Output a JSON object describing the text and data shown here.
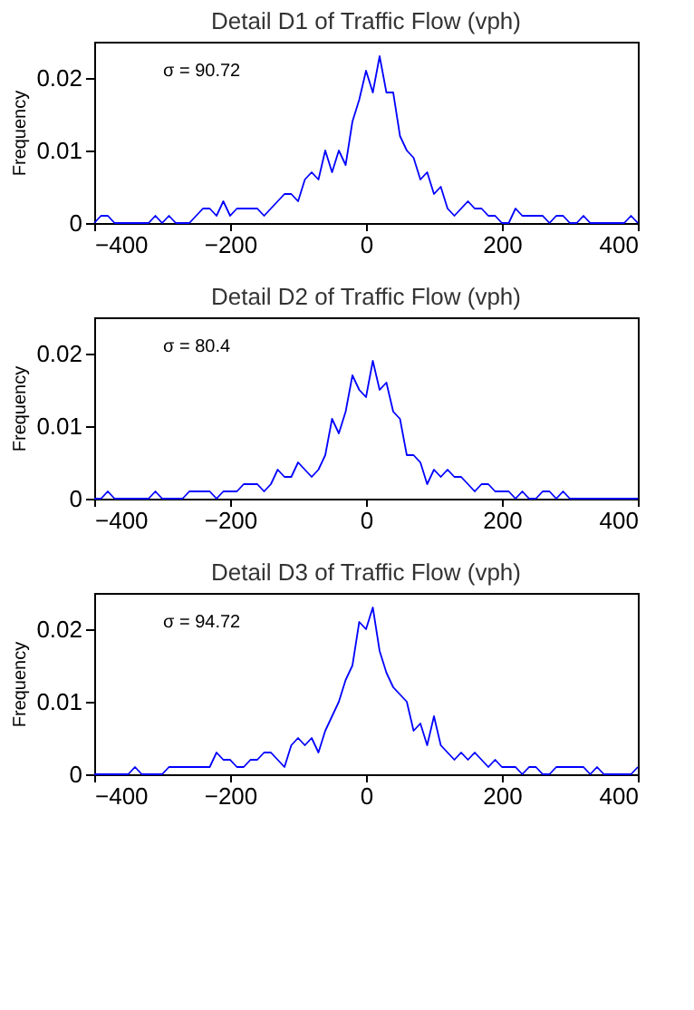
{
  "chart_data": [
    {
      "type": "line",
      "title": "Detail D1 of Traffic Flow (vph)",
      "ylabel": "Frequency",
      "annotations": [
        "σ = 90.72"
      ],
      "xlim": [
        -400,
        400
      ],
      "xticks": [
        -400,
        -200,
        0,
        200,
        400
      ],
      "ylim": [
        0,
        0.025
      ],
      "yticks": [
        0,
        0.01,
        0.02
      ],
      "grid": false,
      "line_style": "solid",
      "x": [
        -400,
        -390,
        -380,
        -370,
        -360,
        -350,
        -340,
        -330,
        -320,
        -310,
        -300,
        -290,
        -280,
        -270,
        -260,
        -250,
        -240,
        -230,
        -220,
        -210,
        -200,
        -190,
        -180,
        -170,
        -160,
        -150,
        -140,
        -130,
        -120,
        -110,
        -100,
        -90,
        -80,
        -70,
        -60,
        -50,
        -40,
        -30,
        -20,
        -10,
        0,
        10,
        20,
        30,
        40,
        50,
        60,
        70,
        80,
        90,
        100,
        110,
        120,
        130,
        140,
        150,
        160,
        170,
        180,
        190,
        200,
        210,
        220,
        230,
        240,
        250,
        260,
        270,
        280,
        290,
        300,
        310,
        320,
        330,
        340,
        350,
        360,
        370,
        380,
        390,
        400
      ],
      "series": [
        {
          "color": "#0000ff",
          "values": [
            0,
            0.001,
            0.001,
            0,
            0,
            0,
            0,
            0,
            0,
            0.001,
            0,
            0.001,
            0,
            0,
            0,
            0.001,
            0.002,
            0.002,
            0.001,
            0.003,
            0.001,
            0.002,
            0.002,
            0.002,
            0.002,
            0.001,
            0.002,
            0.003,
            0.004,
            0.004,
            0.003,
            0.006,
            0.007,
            0.006,
            0.01,
            0.007,
            0.01,
            0.008,
            0.014,
            0.017,
            0.021,
            0.018,
            0.023,
            0.018,
            0.018,
            0.012,
            0.01,
            0.009,
            0.006,
            0.007,
            0.004,
            0.005,
            0.002,
            0.001,
            0.002,
            0.003,
            0.002,
            0.002,
            0.001,
            0.001,
            0,
            0,
            0.002,
            0.001,
            0.001,
            0.001,
            0.001,
            0,
            0.001,
            0.001,
            0,
            0,
            0.001,
            0,
            0,
            0,
            0,
            0,
            0,
            0.001,
            0
          ]
        }
      ]
    },
    {
      "type": "line",
      "title": "Detail D2 of Traffic Flow (vph)",
      "ylabel": "Frequency",
      "annotations": [
        "σ = 80.4"
      ],
      "xlim": [
        -400,
        400
      ],
      "xticks": [
        -400,
        -200,
        0,
        200,
        400
      ],
      "ylim": [
        0,
        0.025
      ],
      "yticks": [
        0,
        0.01,
        0.02
      ],
      "grid": false,
      "line_style": "solid",
      "x": [
        -400,
        -390,
        -380,
        -370,
        -360,
        -350,
        -340,
        -330,
        -320,
        -310,
        -300,
        -290,
        -280,
        -270,
        -260,
        -250,
        -240,
        -230,
        -220,
        -210,
        -200,
        -190,
        -180,
        -170,
        -160,
        -150,
        -140,
        -130,
        -120,
        -110,
        -100,
        -90,
        -80,
        -70,
        -60,
        -50,
        -40,
        -30,
        -20,
        -10,
        0,
        10,
        20,
        30,
        40,
        50,
        60,
        70,
        80,
        90,
        100,
        110,
        120,
        130,
        140,
        150,
        160,
        170,
        180,
        190,
        200,
        210,
        220,
        230,
        240,
        250,
        260,
        270,
        280,
        290,
        300,
        310,
        320,
        330,
        340,
        350,
        360,
        370,
        380,
        390,
        400
      ],
      "series": [
        {
          "color": "#0000ff",
          "values": [
            0,
            0,
            0.001,
            0,
            0,
            0,
            0,
            0,
            0,
            0.001,
            0,
            0,
            0,
            0,
            0.001,
            0.001,
            0.001,
            0.001,
            0,
            0.001,
            0.001,
            0.001,
            0.002,
            0.002,
            0.002,
            0.001,
            0.002,
            0.004,
            0.003,
            0.003,
            0.005,
            0.004,
            0.003,
            0.004,
            0.006,
            0.011,
            0.009,
            0.012,
            0.017,
            0.015,
            0.014,
            0.019,
            0.015,
            0.016,
            0.012,
            0.011,
            0.006,
            0.006,
            0.005,
            0.002,
            0.004,
            0.003,
            0.004,
            0.003,
            0.003,
            0.002,
            0.001,
            0.002,
            0.002,
            0.001,
            0.001,
            0.001,
            0,
            0.001,
            0,
            0,
            0.001,
            0.001,
            0,
            0.001,
            0,
            0,
            0,
            0,
            0,
            0,
            0,
            0,
            0,
            0,
            0
          ]
        }
      ]
    },
    {
      "type": "line",
      "title": "Detail D3 of Traffic Flow (vph)",
      "ylabel": "Frequency",
      "annotations": [
        "σ = 94.72"
      ],
      "xlim": [
        -400,
        400
      ],
      "xticks": [
        -400,
        -200,
        0,
        200,
        400
      ],
      "ylim": [
        0,
        0.025
      ],
      "yticks": [
        0,
        0.01,
        0.02
      ],
      "grid": false,
      "line_style": "solid",
      "x": [
        -400,
        -390,
        -380,
        -370,
        -360,
        -350,
        -340,
        -330,
        -320,
        -310,
        -300,
        -290,
        -280,
        -270,
        -260,
        -250,
        -240,
        -230,
        -220,
        -210,
        -200,
        -190,
        -180,
        -170,
        -160,
        -150,
        -140,
        -130,
        -120,
        -110,
        -100,
        -90,
        -80,
        -70,
        -60,
        -50,
        -40,
        -30,
        -20,
        -10,
        0,
        10,
        20,
        30,
        40,
        50,
        60,
        70,
        80,
        90,
        100,
        110,
        120,
        130,
        140,
        150,
        160,
        170,
        180,
        190,
        200,
        210,
        220,
        230,
        240,
        250,
        260,
        270,
        280,
        290,
        300,
        310,
        320,
        330,
        340,
        350,
        360,
        370,
        380,
        390,
        400
      ],
      "series": [
        {
          "color": "#0000ff",
          "values": [
            0,
            0,
            0,
            0,
            0,
            0,
            0.001,
            0,
            0,
            0,
            0,
            0.001,
            0.001,
            0.001,
            0.001,
            0.001,
            0.001,
            0.001,
            0.003,
            0.002,
            0.002,
            0.001,
            0.001,
            0.002,
            0.002,
            0.003,
            0.003,
            0.002,
            0.001,
            0.004,
            0.005,
            0.004,
            0.005,
            0.003,
            0.006,
            0.008,
            0.01,
            0.013,
            0.015,
            0.021,
            0.02,
            0.023,
            0.017,
            0.014,
            0.012,
            0.011,
            0.01,
            0.006,
            0.007,
            0.004,
            0.008,
            0.004,
            0.003,
            0.002,
            0.003,
            0.002,
            0.003,
            0.002,
            0.001,
            0.002,
            0.001,
            0.001,
            0.001,
            0,
            0.001,
            0.001,
            0,
            0,
            0.001,
            0.001,
            0.001,
            0.001,
            0.001,
            0,
            0.001,
            0,
            0,
            0,
            0,
            0,
            0.001
          ]
        }
      ]
    }
  ]
}
